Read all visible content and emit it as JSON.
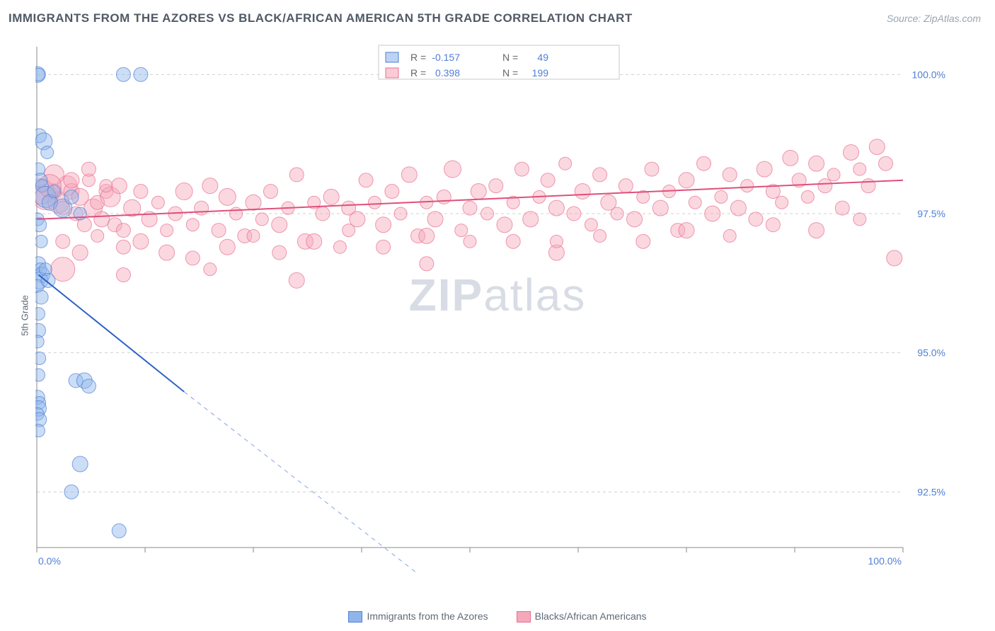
{
  "title": "IMMIGRANTS FROM THE AZORES VS BLACK/AFRICAN AMERICAN 5TH GRADE CORRELATION CHART",
  "source": "Source: ZipAtlas.com",
  "ylabel": "5th Grade",
  "watermark_part1": "ZIP",
  "watermark_part2": "atlas",
  "chart": {
    "type": "scatter",
    "background_color": "#ffffff",
    "grid_color": "#d0d0d0",
    "axis_color": "#888888",
    "xlim": [
      0,
      100
    ],
    "ylim": [
      91.5,
      100.5
    ],
    "xtick_positions": [
      0,
      12.5,
      25,
      37.5,
      50,
      62.5,
      75,
      87.5,
      100
    ],
    "xtick_labels_shown": {
      "0": "0.0%",
      "100": "100.0%"
    },
    "ytick_positions": [
      92.5,
      95.0,
      97.5,
      100.0
    ],
    "ytick_labels": [
      "92.5%",
      "95.0%",
      "97.5%",
      "100.0%"
    ],
    "tick_label_color": "#4f7fd6",
    "tick_label_fontsize": 14
  },
  "stats_legend": {
    "series1": {
      "R_label": "R =",
      "R_value": "-0.157",
      "N_label": "N =",
      "N_value": "49"
    },
    "series2": {
      "R_label": "R =",
      "R_value": "0.398",
      "N_label": "N =",
      "N_value": "199"
    }
  },
  "series": [
    {
      "name": "Immigrants from the Azores",
      "color_fill": "#8fb5ea",
      "color_stroke": "#4f7fd6",
      "fill_opacity": 0.45,
      "trend_color": "#2e62c9",
      "trend_width": 2,
      "trend": {
        "x1": 0.2,
        "y1": 96.4,
        "x2": 17,
        "y2": 94.3,
        "dash_x2": 50,
        "dash_y2": 90.3
      },
      "points": [
        [
          0.1,
          100,
          11
        ],
        [
          0.2,
          100,
          9
        ],
        [
          10,
          100,
          10
        ],
        [
          12,
          100,
          10
        ],
        [
          0.3,
          98.9,
          10
        ],
        [
          0.8,
          98.8,
          12
        ],
        [
          1.2,
          98.6,
          9
        ],
        [
          0.2,
          98.3,
          9
        ],
        [
          0.4,
          98.1,
          10
        ],
        [
          0.6,
          98.0,
          9
        ],
        [
          1.0,
          97.8,
          15
        ],
        [
          1.5,
          97.7,
          11
        ],
        [
          2.0,
          97.9,
          9
        ],
        [
          3.0,
          97.6,
          13
        ],
        [
          4.0,
          97.8,
          10
        ],
        [
          5.0,
          97.5,
          9
        ],
        [
          0.1,
          97.4,
          9
        ],
        [
          0.3,
          97.3,
          10
        ],
        [
          0.5,
          97.0,
          9
        ],
        [
          0.2,
          96.6,
          10
        ],
        [
          0.4,
          96.5,
          9
        ],
        [
          0.6,
          96.4,
          11
        ],
        [
          0.3,
          96.3,
          12
        ],
        [
          0.1,
          96.2,
          9
        ],
        [
          0.5,
          96.0,
          10
        ],
        [
          1.0,
          96.5,
          9
        ],
        [
          1.3,
          96.3,
          10
        ],
        [
          0.2,
          95.7,
          9
        ],
        [
          0.2,
          95.4,
          10
        ],
        [
          0.1,
          95.2,
          9
        ],
        [
          0.3,
          94.9,
          9
        ],
        [
          0.2,
          94.6,
          9
        ],
        [
          4.5,
          94.5,
          10
        ],
        [
          5.5,
          94.5,
          11
        ],
        [
          6.0,
          94.4,
          10
        ],
        [
          0.1,
          94.2,
          10
        ],
        [
          0.3,
          94.1,
          9
        ],
        [
          0.2,
          94.0,
          11
        ],
        [
          0.1,
          93.9,
          9
        ],
        [
          0.3,
          93.8,
          10
        ],
        [
          0.2,
          93.6,
          9
        ],
        [
          5.0,
          93.0,
          11
        ],
        [
          4.0,
          92.5,
          10
        ],
        [
          9.5,
          91.8,
          10
        ]
      ]
    },
    {
      "name": "Blacks/African Americans",
      "color_fill": "#f6a8bb",
      "color_stroke": "#e86f92",
      "fill_opacity": 0.45,
      "trend_color": "#e04f7a",
      "trend_width": 2,
      "trend": {
        "x1": 0,
        "y1": 97.4,
        "x2": 100,
        "y2": 98.1
      },
      "points": [
        [
          1,
          97.8,
          18
        ],
        [
          2,
          97.9,
          11
        ],
        [
          2.5,
          97.7,
          15
        ],
        [
          3,
          97.6,
          10
        ],
        [
          3.5,
          98.0,
          14
        ],
        [
          4,
          97.9,
          11
        ],
        [
          4.5,
          97.5,
          10
        ],
        [
          5,
          97.8,
          12
        ],
        [
          5.5,
          97.3,
          10
        ],
        [
          6,
          98.1,
          9
        ],
        [
          6.5,
          97.6,
          13
        ],
        [
          7,
          97.7,
          10
        ],
        [
          7.5,
          97.4,
          11
        ],
        [
          8,
          97.9,
          10
        ],
        [
          8.5,
          97.8,
          14
        ],
        [
          9,
          97.3,
          10
        ],
        [
          9.5,
          98.0,
          11
        ],
        [
          10,
          97.2,
          10
        ],
        [
          11,
          97.6,
          12
        ],
        [
          12,
          97.9,
          10
        ],
        [
          13,
          97.4,
          11
        ],
        [
          14,
          97.7,
          9
        ],
        [
          15,
          96.8,
          11
        ],
        [
          16,
          97.5,
          10
        ],
        [
          17,
          97.9,
          12
        ],
        [
          18,
          97.3,
          9
        ],
        [
          19,
          97.6,
          10
        ],
        [
          20,
          98.0,
          11
        ],
        [
          21,
          97.2,
          10
        ],
        [
          22,
          97.8,
          12
        ],
        [
          23,
          97.5,
          9
        ],
        [
          24,
          97.1,
          10
        ],
        [
          25,
          97.7,
          11
        ],
        [
          26,
          97.4,
          9
        ],
        [
          27,
          97.9,
          10
        ],
        [
          28,
          97.3,
          11
        ],
        [
          29,
          97.6,
          9
        ],
        [
          30,
          98.2,
          10
        ],
        [
          31,
          97.0,
          11
        ],
        [
          32,
          97.7,
          9
        ],
        [
          33,
          97.5,
          10
        ],
        [
          34,
          97.8,
          11
        ],
        [
          35,
          96.9,
          9
        ],
        [
          36,
          97.6,
          10
        ],
        [
          37,
          97.4,
          11
        ],
        [
          38,
          98.1,
          10
        ],
        [
          39,
          97.7,
          9
        ],
        [
          40,
          97.3,
          11
        ],
        [
          41,
          97.9,
          10
        ],
        [
          42,
          97.5,
          9
        ],
        [
          43,
          98.2,
          11
        ],
        [
          44,
          97.1,
          10
        ],
        [
          45,
          97.7,
          9
        ],
        [
          46,
          97.4,
          11
        ],
        [
          47,
          97.8,
          10
        ],
        [
          48,
          98.3,
          12
        ],
        [
          49,
          97.2,
          9
        ],
        [
          50,
          97.6,
          10
        ],
        [
          51,
          97.9,
          11
        ],
        [
          52,
          97.5,
          9
        ],
        [
          53,
          98.0,
          10
        ],
        [
          54,
          97.3,
          11
        ],
        [
          55,
          97.7,
          9
        ],
        [
          56,
          98.3,
          10
        ],
        [
          57,
          97.4,
          11
        ],
        [
          58,
          97.8,
          9
        ],
        [
          59,
          98.1,
          10
        ],
        [
          60,
          97.6,
          11
        ],
        [
          61,
          98.4,
          9
        ],
        [
          62,
          97.5,
          10
        ],
        [
          63,
          97.9,
          11
        ],
        [
          64,
          97.3,
          9
        ],
        [
          65,
          98.2,
          10
        ],
        [
          66,
          97.7,
          11
        ],
        [
          67,
          97.5,
          9
        ],
        [
          68,
          98.0,
          10
        ],
        [
          69,
          97.4,
          11
        ],
        [
          70,
          97.8,
          9
        ],
        [
          71,
          98.3,
          10
        ],
        [
          72,
          97.6,
          11
        ],
        [
          73,
          97.9,
          9
        ],
        [
          74,
          97.2,
          10
        ],
        [
          75,
          98.1,
          11
        ],
        [
          76,
          97.7,
          9
        ],
        [
          77,
          98.4,
          10
        ],
        [
          78,
          97.5,
          11
        ],
        [
          79,
          97.8,
          9
        ],
        [
          80,
          98.2,
          10
        ],
        [
          81,
          97.6,
          11
        ],
        [
          82,
          98.0,
          9
        ],
        [
          83,
          97.4,
          10
        ],
        [
          84,
          98.3,
          11
        ],
        [
          85,
          97.9,
          10
        ],
        [
          86,
          97.7,
          9
        ],
        [
          87,
          98.5,
          11
        ],
        [
          88,
          98.1,
          10
        ],
        [
          89,
          97.8,
          9
        ],
        [
          90,
          98.4,
          11
        ],
        [
          91,
          98.0,
          10
        ],
        [
          92,
          98.2,
          9
        ],
        [
          93,
          97.6,
          10
        ],
        [
          94,
          98.6,
          11
        ],
        [
          95,
          98.3,
          9
        ],
        [
          96,
          98.0,
          10
        ],
        [
          97,
          98.7,
          11
        ],
        [
          98,
          98.4,
          10
        ],
        [
          99,
          96.7,
          11
        ],
        [
          3,
          97.0,
          10
        ],
        [
          5,
          96.8,
          11
        ],
        [
          7,
          97.1,
          9
        ],
        [
          10,
          96.9,
          10
        ],
        [
          12,
          97.0,
          11
        ],
        [
          15,
          97.2,
          9
        ],
        [
          18,
          96.7,
          10
        ],
        [
          22,
          96.9,
          11
        ],
        [
          25,
          97.1,
          9
        ],
        [
          28,
          96.8,
          10
        ],
        [
          32,
          97.0,
          11
        ],
        [
          36,
          97.2,
          9
        ],
        [
          40,
          96.9,
          10
        ],
        [
          45,
          97.1,
          11
        ],
        [
          50,
          97.0,
          9
        ],
        [
          55,
          97.0,
          10
        ],
        [
          60,
          96.8,
          11
        ],
        [
          65,
          97.1,
          9
        ],
        [
          70,
          97.0,
          10
        ],
        [
          75,
          97.2,
          11
        ],
        [
          80,
          97.1,
          9
        ],
        [
          85,
          97.3,
          10
        ],
        [
          90,
          97.2,
          11
        ],
        [
          95,
          97.4,
          9
        ],
        [
          10,
          96.4,
          10
        ],
        [
          20,
          96.5,
          9
        ],
        [
          30,
          96.3,
          11
        ],
        [
          45,
          96.6,
          10
        ],
        [
          60,
          97.0,
          9
        ],
        [
          2,
          98.2,
          14
        ],
        [
          4,
          98.1,
          11
        ],
        [
          6,
          98.3,
          10
        ],
        [
          8,
          98.0,
          9
        ],
        [
          0.5,
          97.9,
          18
        ],
        [
          1.5,
          98.0,
          16
        ],
        [
          3,
          96.5,
          17
        ]
      ]
    }
  ],
  "bottom_legend": {
    "items": [
      {
        "label": "Immigrants from the Azores",
        "fill": "#8fb5ea",
        "stroke": "#4f7fd6"
      },
      {
        "label": "Blacks/African Americans",
        "fill": "#f6a8bb",
        "stroke": "#e86f92"
      }
    ]
  }
}
